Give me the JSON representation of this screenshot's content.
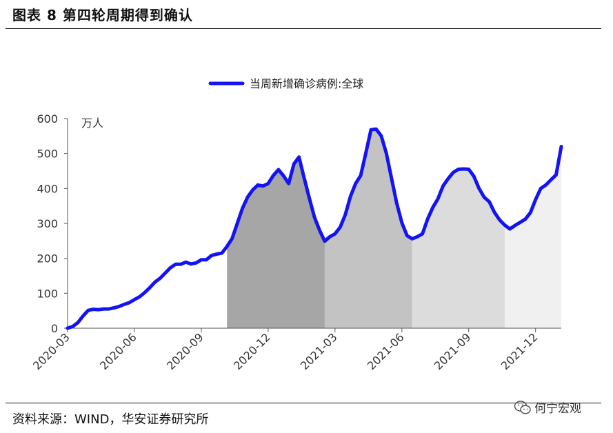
{
  "figure": {
    "title": "图表 8 第四轮周期得到确认",
    "source": "资料来源：WIND，华安证券研究所",
    "watermark": "何宁宏观",
    "watermark_icon": "wechat-icon"
  },
  "colors": {
    "line": "#1414f0",
    "band1": "#a6a6a6",
    "band2": "#c3c3c3",
    "band3": "#dcdcdc",
    "band4": "#f0f0f0"
  },
  "chart_data": {
    "type": "line",
    "unit": "万人",
    "ylim": [
      0,
      600
    ],
    "yticks": [
      0,
      100,
      200,
      300,
      400,
      500,
      600
    ],
    "xticks": [
      "2020-03",
      "2020-06",
      "2020-09",
      "2020-12",
      "2021-03",
      "2021-06",
      "2021-09",
      "2021-12"
    ],
    "grid": false,
    "legend_position": "top-center",
    "series": [
      {
        "name": "当周新增确诊病例:全球",
        "x": [
          0,
          1,
          2,
          3,
          4,
          5,
          6,
          7,
          8,
          9,
          10,
          11,
          12,
          13,
          14,
          15,
          16,
          17,
          18,
          19,
          20,
          21,
          22,
          23,
          24,
          25,
          26,
          27,
          28,
          29,
          30,
          31,
          32,
          33,
          34,
          35,
          36,
          37,
          38,
          39,
          40,
          41,
          42,
          43,
          44,
          45,
          46,
          47,
          48,
          49,
          50,
          51,
          52,
          53,
          54,
          55,
          56,
          57,
          58,
          59,
          60,
          61,
          62,
          63,
          64,
          65,
          66,
          67,
          68,
          69,
          70,
          71,
          72,
          73,
          74,
          75,
          76,
          77,
          78,
          79,
          80,
          81,
          82,
          83,
          84,
          85,
          86,
          87,
          88,
          89,
          90,
          91,
          92,
          93,
          94,
          95,
          96
        ],
        "y": [
          0,
          5,
          16,
          35,
          51,
          54,
          53,
          55,
          55,
          58,
          62,
          68,
          73,
          82,
          90,
          102,
          116,
          132,
          143,
          158,
          173,
          183,
          183,
          189,
          184,
          187,
          196,
          196,
          208,
          212,
          215,
          234,
          257,
          300,
          343,
          375,
          396,
          410,
          407,
          414,
          437,
          454,
          436,
          414,
          470,
          490,
          430,
          373,
          318,
          280,
          249,
          262,
          270,
          289,
          325,
          377,
          414,
          437,
          502,
          568,
          570,
          550,
          500,
          428,
          358,
          302,
          265,
          256,
          262,
          270,
          312,
          345,
          370,
          407,
          428,
          446,
          455,
          456,
          455,
          435,
          400,
          375,
          362,
          332,
          310,
          295,
          284,
          294,
          303,
          312,
          331,
          368,
          400,
          410,
          425,
          439,
          520
        ],
        "bands": [
          {
            "from": 31,
            "to": 50,
            "color": "band1"
          },
          {
            "from": 50,
            "to": 67,
            "color": "band2"
          },
          {
            "from": 67,
            "to": 85,
            "color": "band3"
          },
          {
            "from": 85,
            "to": 96,
            "color": "band4"
          }
        ]
      }
    ],
    "x_tick_positions": [
      0,
      13,
      26,
      39,
      52,
      65,
      78,
      91
    ]
  }
}
